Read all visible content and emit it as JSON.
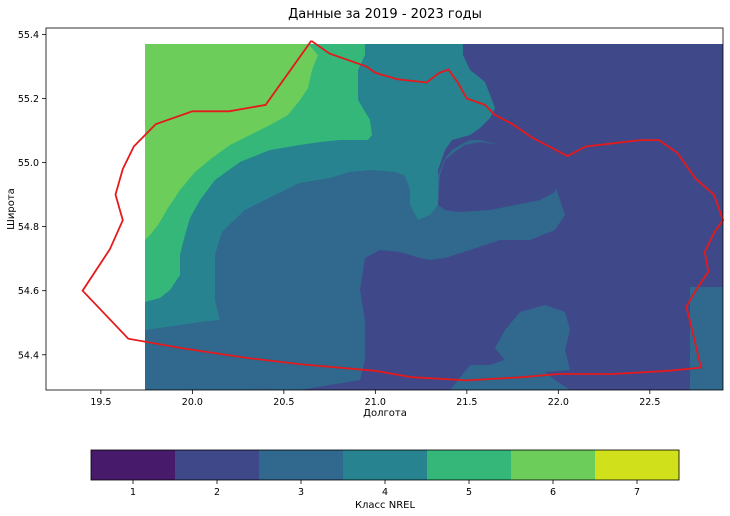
{
  "chart_data": {
    "type": "heatmap",
    "title": "Данные за 2019 - 2023 годы",
    "xlabel": "Долгота",
    "ylabel": "Широта",
    "xlim": [
      19.2,
      22.9
    ],
    "ylim": [
      54.29,
      55.42
    ],
    "xticks": [
      "19.5",
      "20.0",
      "20.5",
      "21.0",
      "21.5",
      "22.0",
      "22.5"
    ],
    "yticks": [
      "54.4",
      "54.6",
      "54.8",
      "55.0",
      "55.2",
      "55.4"
    ],
    "data_extent": {
      "lon": [
        19.75,
        22.9
      ],
      "lat": [
        54.29,
        55.37
      ]
    },
    "colorbar": {
      "label": "Класс NREL",
      "classes": [
        "1",
        "2",
        "3",
        "4",
        "5",
        "6",
        "7"
      ],
      "colors": [
        "#481a6c",
        "#3f4889",
        "#31688e",
        "#26838f",
        "#35b779",
        "#6ccd5a",
        "#d0e11c"
      ]
    },
    "class_regions": [
      {
        "class": 6,
        "lon_range": [
          19.75,
          20.62
        ],
        "lat_range": [
          54.6,
          55.37
        ]
      },
      {
        "class": 5,
        "lon_range": [
          19.75,
          21.0
        ],
        "lat_range": [
          54.55,
          55.37
        ]
      },
      {
        "class": 4,
        "lon_range": [
          19.75,
          21.35
        ],
        "lat_range": [
          54.45,
          55.37
        ]
      },
      {
        "class": 3,
        "lon_range": [
          19.75,
          22.9
        ],
        "lat_range": [
          54.29,
          55.37
        ]
      },
      {
        "class": 2,
        "lon_range": [
          20.25,
          22.9
        ],
        "lat_range": [
          54.29,
          55.37
        ]
      }
    ],
    "boundary_color": "#e41a1c",
    "boundary": [
      [
        20.65,
        55.38
      ],
      [
        20.75,
        55.34
      ],
      [
        20.95,
        55.3
      ],
      [
        21.0,
        55.28
      ],
      [
        21.12,
        55.26
      ],
      [
        21.28,
        55.25
      ],
      [
        21.35,
        55.28
      ],
      [
        21.4,
        55.29
      ],
      [
        21.45,
        55.25
      ],
      [
        21.5,
        55.2
      ],
      [
        21.6,
        55.18
      ],
      [
        21.65,
        55.15
      ],
      [
        21.75,
        55.12
      ],
      [
        21.85,
        55.08
      ],
      [
        21.95,
        55.05
      ],
      [
        22.05,
        55.02
      ],
      [
        22.15,
        55.05
      ],
      [
        22.3,
        55.06
      ],
      [
        22.45,
        55.07
      ],
      [
        22.55,
        55.07
      ],
      [
        22.65,
        55.03
      ],
      [
        22.75,
        54.95
      ],
      [
        22.85,
        54.9
      ],
      [
        22.9,
        54.82
      ],
      [
        22.85,
        54.78
      ],
      [
        22.8,
        54.72
      ],
      [
        22.82,
        54.66
      ],
      [
        22.75,
        54.6
      ],
      [
        22.7,
        54.55
      ],
      [
        22.73,
        54.48
      ],
      [
        22.75,
        54.43
      ],
      [
        22.78,
        54.36
      ],
      [
        22.6,
        54.35
      ],
      [
        22.3,
        54.34
      ],
      [
        22.0,
        54.34
      ],
      [
        21.8,
        54.33
      ],
      [
        21.5,
        54.32
      ],
      [
        21.2,
        54.33
      ],
      [
        21.0,
        54.35
      ],
      [
        20.6,
        54.37
      ],
      [
        20.3,
        54.39
      ],
      [
        19.95,
        54.42
      ],
      [
        19.65,
        54.45
      ],
      [
        19.4,
        54.6
      ],
      [
        19.55,
        54.73
      ],
      [
        19.62,
        54.82
      ],
      [
        19.58,
        54.9
      ],
      [
        19.62,
        54.98
      ],
      [
        19.68,
        55.05
      ],
      [
        19.8,
        55.12
      ],
      [
        20.0,
        55.16
      ],
      [
        20.2,
        55.16
      ],
      [
        20.4,
        55.18
      ],
      [
        20.65,
        55.38
      ]
    ]
  }
}
